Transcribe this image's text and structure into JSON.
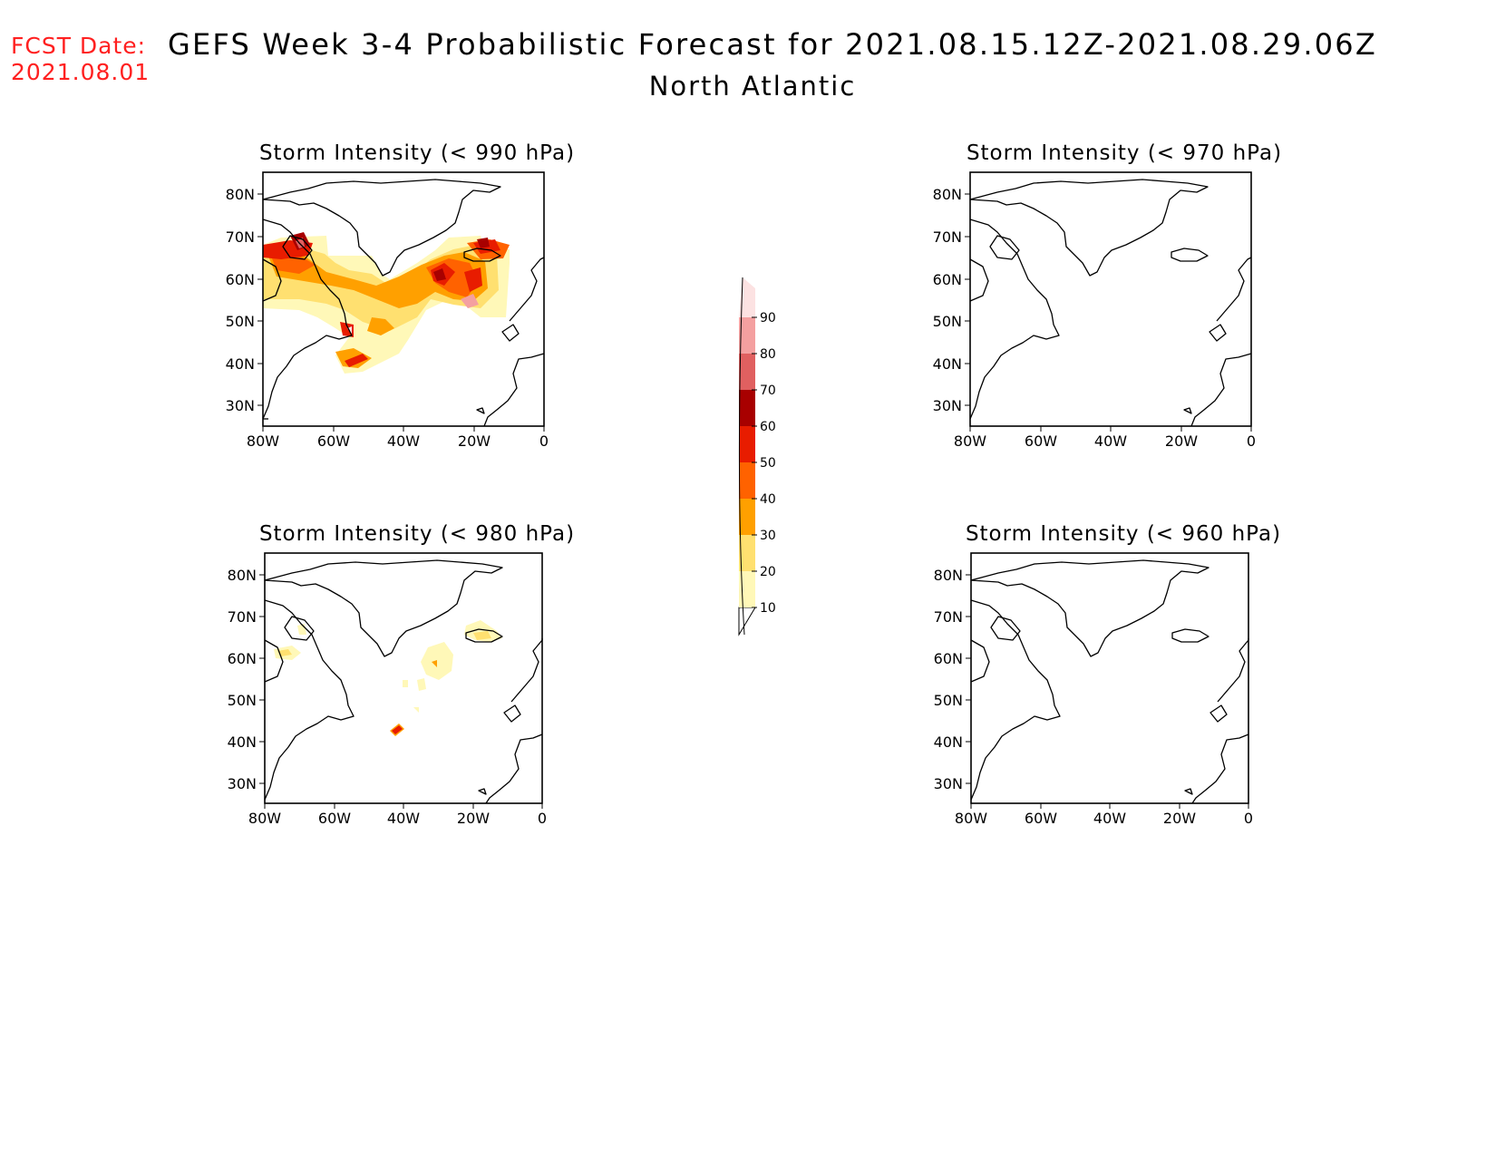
{
  "header": {
    "fcst_label": "FCST Date:",
    "fcst_date": "2021.08.01",
    "title": "GEFS Week 3-4 Probabilistic Forecast for 2021.08.15.12Z-2021.08.29.06Z",
    "subtitle": "North Atlantic"
  },
  "colors": {
    "fcst_text": "#ff2020",
    "levels": [
      "#fff8b8",
      "#ffe070",
      "#ffa000",
      "#ff6200",
      "#e81c00",
      "#a80000",
      "#e06060",
      "#f4a0a0",
      "#fce2e2"
    ]
  },
  "colorbar": {
    "labels": [
      "10",
      "20",
      "30",
      "40",
      "50",
      "60",
      "70",
      "80",
      "90"
    ]
  },
  "axes": {
    "lat_labels": [
      "80N",
      "70N",
      "60N",
      "50N",
      "40N",
      "30N"
    ],
    "lon_labels": [
      "80W",
      "60W",
      "40W",
      "20W",
      "0"
    ]
  },
  "panels": [
    {
      "id": "p990",
      "title": "Storm Intensity (< 990 hPa)"
    },
    {
      "id": "p970",
      "title": "Storm Intensity (< 970 hPa)"
    },
    {
      "id": "p980",
      "title": "Storm Intensity (< 980 hPa)"
    },
    {
      "id": "p960",
      "title": "Storm Intensity (< 960 hPa)"
    }
  ]
}
